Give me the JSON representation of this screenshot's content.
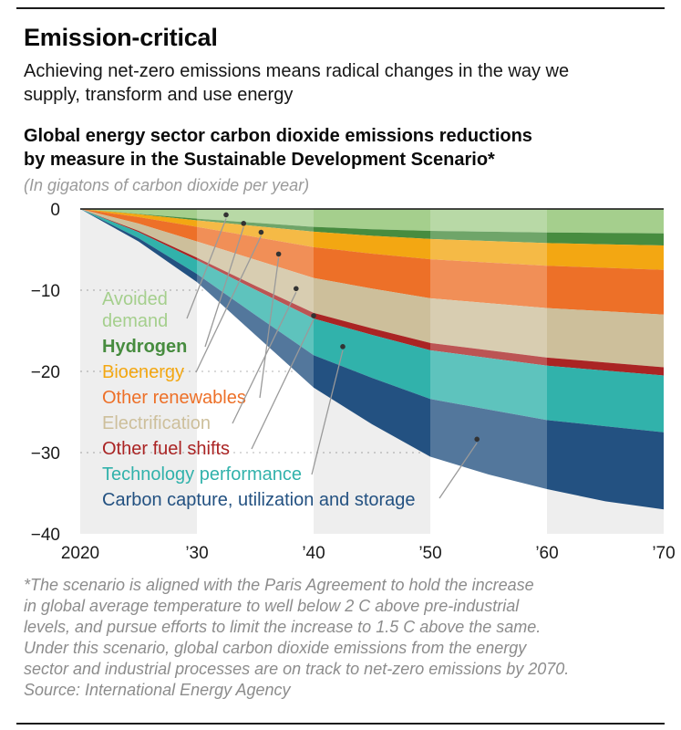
{
  "header": {
    "title": "Emission-critical",
    "subtitle": "Achieving net-zero emissions means radical changes in the way we supply, transform and use energy"
  },
  "chart": {
    "title": "Global energy sector carbon dioxide emissions reductions by measure in the Sustainable Development Scenario*",
    "unit_note": "(In gigatons of carbon dioxide per year)"
  },
  "chart_data": {
    "type": "area",
    "stacked": true,
    "direction": "negative-downward",
    "title": "Global energy sector carbon dioxide emissions reductions by measure in the Sustainable Development Scenario",
    "ylabel": "Gigatons of carbon dioxide per year",
    "ylim": [
      -40,
      0
    ],
    "x": [
      2020,
      2025,
      2030,
      2035,
      2040,
      2045,
      2050,
      2055,
      2060,
      2065,
      2070
    ],
    "x_ticks": [
      2020,
      2030,
      2040,
      2050,
      2060,
      2070
    ],
    "x_tick_labels": [
      "2020",
      "’30",
      "’40",
      "’50",
      "’60",
      "’70"
    ],
    "y_ticks": [
      0,
      -10,
      -20,
      -30,
      -40
    ],
    "y_tick_labels": [
      "0",
      "−10",
      "−20",
      "−30",
      "−40"
    ],
    "grid": "dotted horizontal at -10,-20,-30",
    "background_stripe_color": "#eeeeee",
    "values_unit": "Gt CO2 per year of reduction (magnitudes, plotted downward from 0)",
    "series": [
      {
        "id": "avoided-demand",
        "name": "Avoided demand",
        "label_lines": [
          "Avoided",
          "demand"
        ],
        "color": "#a5cf8d",
        "values": [
          0,
          0.6,
          1.2,
          1.7,
          2.2,
          2.5,
          2.7,
          2.8,
          2.9,
          2.95,
          3.0
        ]
      },
      {
        "id": "hydrogen",
        "name": "Hydrogen",
        "label_lines": [
          "Hydrogen"
        ],
        "bold": true,
        "color": "#478c3f",
        "values": [
          0,
          0.05,
          0.2,
          0.4,
          0.6,
          0.8,
          1.0,
          1.15,
          1.3,
          1.4,
          1.5
        ]
      },
      {
        "id": "bioenergy",
        "name": "Bioenergy",
        "label_lines": [
          "Bioenergy"
        ],
        "color": "#f3a712",
        "values": [
          0,
          0.35,
          0.8,
          1.35,
          1.9,
          2.2,
          2.5,
          2.65,
          2.8,
          2.9,
          3.0
        ]
      },
      {
        "id": "other-renewables",
        "name": "Other renewables",
        "label_lines": [
          "Other renewables"
        ],
        "color": "#ed7028",
        "values": [
          0,
          0.8,
          1.8,
          2.8,
          3.8,
          4.3,
          4.8,
          5.0,
          5.2,
          5.35,
          5.5
        ]
      },
      {
        "id": "electrification",
        "name": "Electrification",
        "label_lines": [
          "Electrification"
        ],
        "color": "#cdbf9b",
        "values": [
          0,
          0.9,
          2.0,
          3.2,
          4.3,
          4.9,
          5.5,
          5.8,
          6.1,
          6.3,
          6.5
        ]
      },
      {
        "id": "other-fuel-shifts",
        "name": "Other fuel shifts",
        "label_lines": [
          "Other fuel shifts"
        ],
        "color": "#aa2424",
        "values": [
          0,
          0.15,
          0.3,
          0.5,
          0.7,
          0.8,
          0.9,
          0.95,
          1.0,
          1.0,
          1.0
        ]
      },
      {
        "id": "technology-performance",
        "name": "Technology performance",
        "label_lines": [
          "Technology performance"
        ],
        "color": "#31b2ab",
        "values": [
          0,
          0.75,
          1.7,
          3.1,
          4.5,
          5.3,
          6.0,
          6.35,
          6.7,
          6.85,
          7.0
        ]
      },
      {
        "id": "ccus",
        "name": "Carbon capture, utilization and storage",
        "label_lines": [
          "Carbon capture, utilization and storage"
        ],
        "color": "#235181",
        "values": [
          0,
          0.4,
          1.0,
          2.45,
          4.0,
          5.7,
          7.1,
          8.0,
          8.5,
          9.25,
          9.5
        ]
      }
    ]
  },
  "footnote": {
    "lines": [
      "*The scenario is aligned with the Paris Agreement to hold the increase",
      "in global average temperature to well below 2 C above pre-industrial",
      "levels, and pursue efforts to limit the increase to 1.5 C above the same.",
      "Under this scenario, global carbon dioxide emissions from the energy",
      "sector and industrial processes are on track to net-zero emissions by 2070.",
      "Source: International Energy Agency"
    ]
  }
}
